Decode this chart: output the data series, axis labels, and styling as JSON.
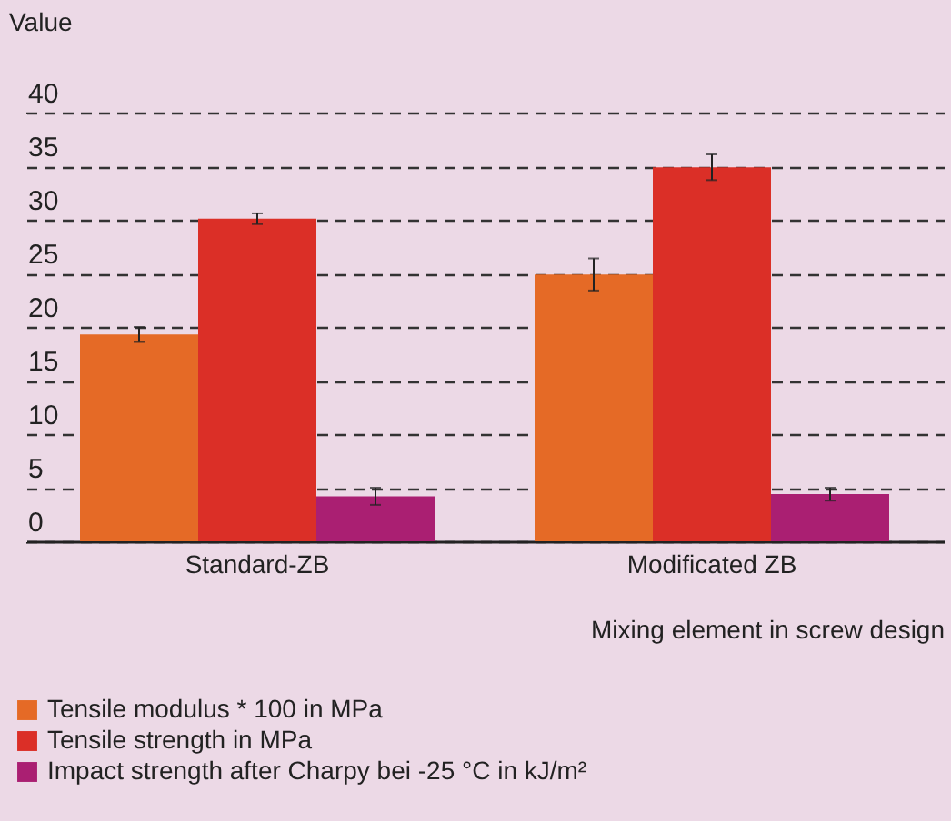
{
  "chart_data": {
    "type": "bar",
    "ylabel": "Value",
    "xlabel": "Mixing element in screw design",
    "categories": [
      "Standard-ZB",
      "Modificated ZB"
    ],
    "series": [
      {
        "name": "Tensile modulus * 100 in MPa",
        "color": "#e56a26",
        "values": [
          19.3,
          24.9
        ],
        "errors": [
          0.7,
          1.5
        ]
      },
      {
        "name": "Tensile strength in MPa",
        "color": "#db2f27",
        "values": [
          30.1,
          34.9
        ],
        "errors": [
          0.5,
          1.2
        ]
      },
      {
        "name": "Impact strength after Charpy bei -25 °C in kJ/m²",
        "color": "#aa1f72",
        "values": [
          4.2,
          4.4
        ],
        "errors": [
          0.8,
          0.6
        ]
      }
    ],
    "ylim": [
      0,
      40
    ],
    "yticks": [
      0,
      5,
      10,
      15,
      20,
      25,
      30,
      35,
      40
    ],
    "grid": "y",
    "legend": "bottom"
  }
}
